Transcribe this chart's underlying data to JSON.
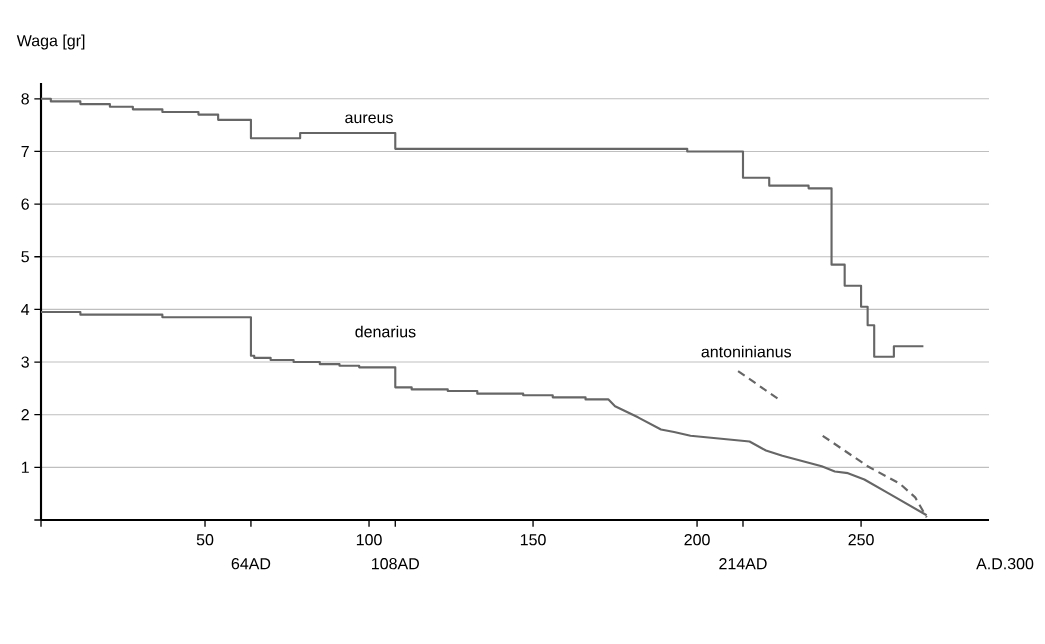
{
  "chart_data": {
    "type": "line",
    "ylabel": "Waga [gr]",
    "annotations": [
      "A.D.300",
      "64AD",
      "108AD",
      "214AD"
    ],
    "xlim": [
      0,
      289
    ],
    "ylim": [
      0,
      8.3
    ],
    "xticks": [
      {
        "value": 0,
        "label": null
      },
      50,
      {
        "value": 64,
        "label": null
      },
      100,
      {
        "value": 108,
        "label": null
      },
      150,
      200,
      {
        "value": 214,
        "label": null
      },
      250
    ],
    "yticks": [
      {
        "value": 0,
        "label": null
      },
      1,
      2,
      3,
      4,
      5,
      6,
      7,
      8
    ],
    "grid": "y",
    "marker": "none",
    "series": [
      {
        "name": "aureus",
        "color": "#666666",
        "x": [
          0,
          3,
          3,
          12,
          12,
          21,
          21,
          28,
          28,
          37,
          37,
          48,
          48,
          54,
          54,
          64,
          64,
          79,
          79,
          108,
          108,
          197,
          197,
          214,
          214,
          222,
          222,
          234,
          234,
          241,
          241,
          245,
          245,
          250,
          250,
          252,
          252,
          254,
          254,
          260,
          260,
          269
        ],
        "values": [
          8.0,
          8.0,
          7.95,
          7.95,
          7.9,
          7.9,
          7.85,
          7.85,
          7.8,
          7.8,
          7.75,
          7.75,
          7.7,
          7.7,
          7.6,
          7.6,
          7.25,
          7.25,
          7.35,
          7.35,
          7.05,
          7.05,
          7.0,
          7.0,
          6.5,
          6.5,
          6.35,
          6.35,
          6.3,
          6.3,
          4.85,
          4.85,
          4.45,
          4.45,
          4.05,
          4.05,
          3.7,
          3.7,
          3.1,
          3.1,
          3.3,
          3.3
        ]
      },
      {
        "name": "denarius",
        "color": "#666666",
        "x": [
          0,
          12,
          12,
          37,
          37,
          64,
          64,
          65,
          65,
          70,
          70,
          77,
          77,
          85,
          85,
          91,
          91,
          97,
          97,
          108,
          108,
          113,
          113,
          124,
          124,
          133,
          133,
          147,
          147,
          156,
          156,
          166,
          166,
          173,
          175,
          182,
          189,
          193,
          198,
          216,
          221,
          226,
          232,
          238,
          242,
          246,
          251,
          258,
          270
        ],
        "values": [
          3.95,
          3.95,
          3.9,
          3.9,
          3.85,
          3.85,
          3.12,
          3.12,
          3.08,
          3.08,
          3.04,
          3.04,
          3.0,
          3.0,
          2.96,
          2.96,
          2.93,
          2.93,
          2.9,
          2.9,
          2.52,
          2.52,
          2.48,
          2.48,
          2.45,
          2.45,
          2.4,
          2.4,
          2.37,
          2.37,
          2.33,
          2.33,
          2.29,
          2.29,
          2.16,
          1.95,
          1.72,
          1.67,
          1.6,
          1.49,
          1.32,
          1.22,
          1.12,
          1.02,
          0.92,
          0.89,
          0.77,
          0.52,
          0.09
        ]
      },
      {
        "name": "antoninianus",
        "color": "#666666",
        "line_style": "dashed",
        "x": [
          212.5,
          224.7,
          230,
          238.3,
          252,
          261.8,
          266.5,
          270
        ],
        "values": [
          2.83,
          2.3,
          null,
          1.6,
          1.02,
          0.69,
          0.43,
          0.05
        ]
      }
    ]
  }
}
